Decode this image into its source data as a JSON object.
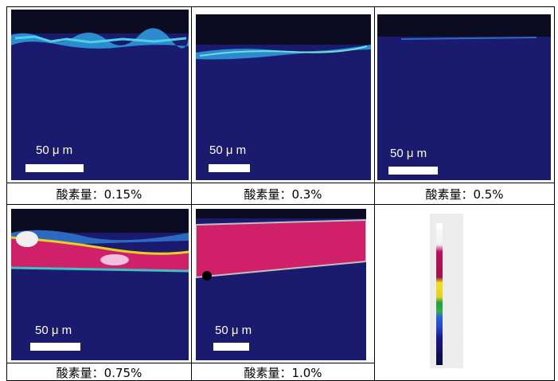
{
  "panels": [
    {
      "caption": "酸素量：0.15%",
      "scale_label": "50 μ m"
    },
    {
      "caption": "酸素量：0.3%",
      "scale_label": "50 μ m"
    },
    {
      "caption": "酸素量：0.5%",
      "scale_label": "50 μ m"
    },
    {
      "caption": "酸素量：0.75%",
      "scale_label": "50 μ m"
    },
    {
      "caption": "酸素量：1.0%",
      "scale_label": "50 μ m"
    }
  ]
}
